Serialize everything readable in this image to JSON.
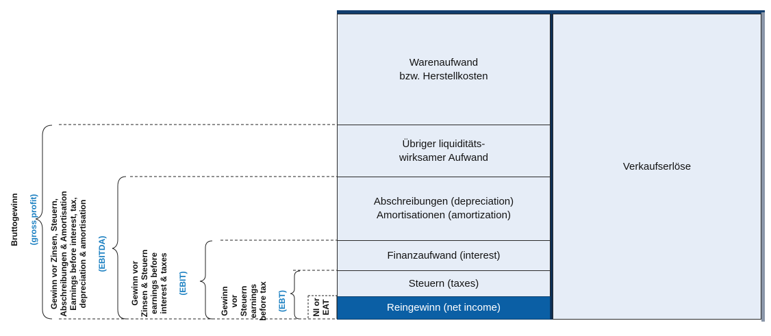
{
  "colors": {
    "panel": "#e6edf7",
    "border": "#123e6e",
    "net_income": "#0b5fa5",
    "accent": "#1a7fc1"
  },
  "right_column": {
    "label": "Verkaufserlöse"
  },
  "expense_column": {
    "rows": [
      {
        "line1": "Warenaufwand",
        "line2": "bzw. Herstellkosten"
      },
      {
        "line1": "Übriger liquiditäts-",
        "line2": "wirksamer Aufwand"
      },
      {
        "line1": "Abschreibungen (depreciation)",
        "line2": "Amortisationen (amortization)"
      },
      {
        "line1": "Finanzaufwand (interest)"
      },
      {
        "line1": "Steuern (taxes)"
      },
      {
        "line1": "Reingewinn (net income)"
      }
    ]
  },
  "brackets": {
    "gross_profit": {
      "text": "Bruttogewinn",
      "abbr": "(gross profit)"
    },
    "ebitda": {
      "text": "Gewinn vor Zinsen, Steuern,\nAbschreibungen & Amortisation\nEarnings before interest, tax,\ndepreciation & amortisation",
      "abbr": "(EBITDA)"
    },
    "ebit": {
      "text": "Gewinn vor\nZinsen & Steuern\nearnings before\ninterest & taxes",
      "abbr": "(EBIT)"
    },
    "ebt": {
      "text": "Gewinn\nvor\nSteuern\nearnings\nbefore tax",
      "abbr": "(EBT)"
    },
    "ni": {
      "text": "NI or\nEAT"
    }
  }
}
